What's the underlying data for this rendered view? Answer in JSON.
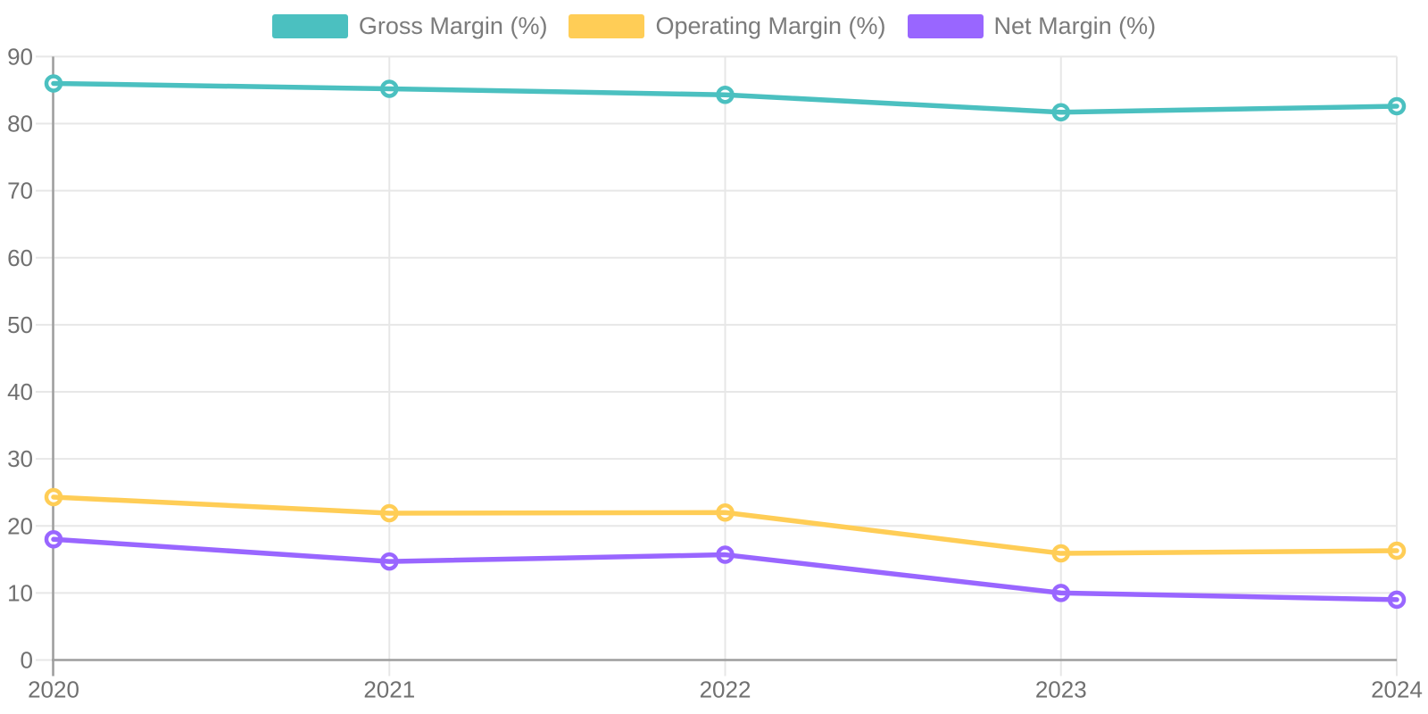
{
  "chart_data": {
    "type": "line",
    "title": "",
    "categories": [
      "2020",
      "2021",
      "2022",
      "2023",
      "2024"
    ],
    "series": [
      {
        "name": "Gross Margin (%)",
        "color": "#4bc0c0",
        "values": [
          86.0,
          85.2,
          84.3,
          81.7,
          82.6
        ]
      },
      {
        "name": "Operating Margin (%)",
        "color": "#ffcd56",
        "values": [
          24.3,
          21.9,
          22.0,
          15.9,
          16.3
        ]
      },
      {
        "name": "Net Margin (%)",
        "color": "#9966ff",
        "values": [
          18.0,
          14.7,
          15.7,
          10.0,
          9.0
        ]
      }
    ],
    "xlabel": "",
    "ylabel": "",
    "ylim": [
      0,
      90
    ],
    "y_ticks": [
      0,
      10,
      20,
      30,
      40,
      50,
      60,
      70,
      80,
      90
    ],
    "grid": true,
    "legend_position": "top",
    "point_style": "hollow-circle",
    "background_color": "#ffffff",
    "grid_color": "#e7e7e7",
    "axis_color": "#9e9e9e",
    "text_color": "#707070"
  }
}
